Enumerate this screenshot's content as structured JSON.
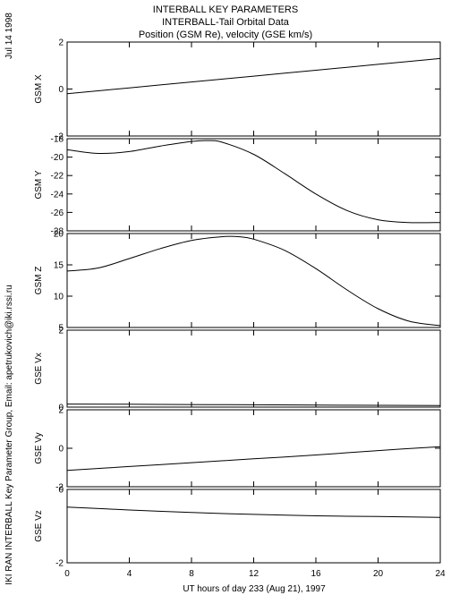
{
  "header": {
    "date": "Jul 14 1998",
    "title_lines": [
      "INTERBALL KEY PARAMETERS",
      "INTERBALL-Tail Orbital Data",
      "Position (GSM Re), velocity (GSE km/s)"
    ]
  },
  "side_credit": "IKI RAN INTERBALL Key Parameter Group, Email: apetrukovich@iki.rssi.ru",
  "chart_data": [
    {
      "type": "line",
      "ylabel": "GSM X",
      "ylim": [
        -2,
        2
      ],
      "yticks": [
        -2,
        0,
        2
      ],
      "ytick_labels": [
        "-2",
        "0",
        "2"
      ],
      "x": [
        0,
        4,
        8,
        12,
        16,
        20,
        24
      ],
      "values": [
        -0.2,
        0.05,
        0.3,
        0.55,
        0.8,
        1.05,
        1.3
      ]
    },
    {
      "type": "line",
      "ylabel": "GSM Y",
      "ylim": [
        -28,
        -18
      ],
      "yticks": [
        -28,
        -26,
        -24,
        -22,
        -20,
        -18
      ],
      "ytick_labels": [
        "-28",
        "-26",
        "-24",
        "-22",
        "-20",
        "-18"
      ],
      "x": [
        0,
        2,
        4,
        6,
        8,
        9,
        10,
        12,
        14,
        16,
        18,
        20,
        22,
        24
      ],
      "values": [
        -19.2,
        -19.6,
        -19.4,
        -18.8,
        -18.3,
        -18.2,
        -18.4,
        -19.7,
        -21.8,
        -24.0,
        -25.8,
        -26.8,
        -27.1,
        -27.1
      ]
    },
    {
      "type": "line",
      "ylabel": "GSM Z",
      "ylim": [
        5,
        20
      ],
      "yticks": [
        5,
        10,
        15,
        20
      ],
      "ytick_labels": [
        "5",
        "10",
        "15",
        "20"
      ],
      "x": [
        0,
        2,
        4,
        6,
        8,
        10,
        11,
        12,
        14,
        16,
        18,
        20,
        22,
        24
      ],
      "values": [
        14.0,
        14.5,
        16.0,
        17.6,
        18.9,
        19.5,
        19.5,
        19.1,
        17.3,
        14.4,
        11.0,
        8.0,
        6.0,
        5.3
      ]
    },
    {
      "type": "line",
      "ylabel": "GSE Vx",
      "ylim": [
        0,
        2
      ],
      "yticks": [
        0,
        2
      ],
      "ytick_labels": [
        "0",
        "2"
      ],
      "x": [
        0,
        6,
        12,
        18,
        24
      ],
      "values": [
        0.08,
        0.07,
        0.06,
        0.05,
        0.04
      ]
    },
    {
      "type": "line",
      "ylabel": "GSE Vy",
      "ylim": [
        -2,
        2
      ],
      "yticks": [
        -2,
        0,
        2
      ],
      "ytick_labels": [
        "-2",
        "0",
        "2"
      ],
      "x": [
        0,
        4,
        8,
        12,
        16,
        20,
        24
      ],
      "values": [
        -1.15,
        -0.95,
        -0.75,
        -0.55,
        -0.35,
        -0.12,
        0.08
      ]
    },
    {
      "type": "line",
      "ylabel": "GSE Vz",
      "ylim": [
        -2,
        0
      ],
      "yticks": [
        -2,
        0
      ],
      "ytick_labels": [
        "-2",
        "0"
      ],
      "x": [
        0,
        4,
        8,
        12,
        16,
        20,
        24
      ],
      "values": [
        -0.48,
        -0.56,
        -0.63,
        -0.68,
        -0.72,
        -0.74,
        -0.76
      ]
    }
  ],
  "xaxis": {
    "xlim": [
      0,
      24
    ],
    "ticks": [
      0,
      4,
      8,
      12,
      16,
      20,
      24
    ],
    "tick_labels": [
      "0",
      "4",
      "8",
      "12",
      "16",
      "20",
      "24"
    ],
    "label": "UT hours of day 233 (Aug 21), 1997"
  }
}
